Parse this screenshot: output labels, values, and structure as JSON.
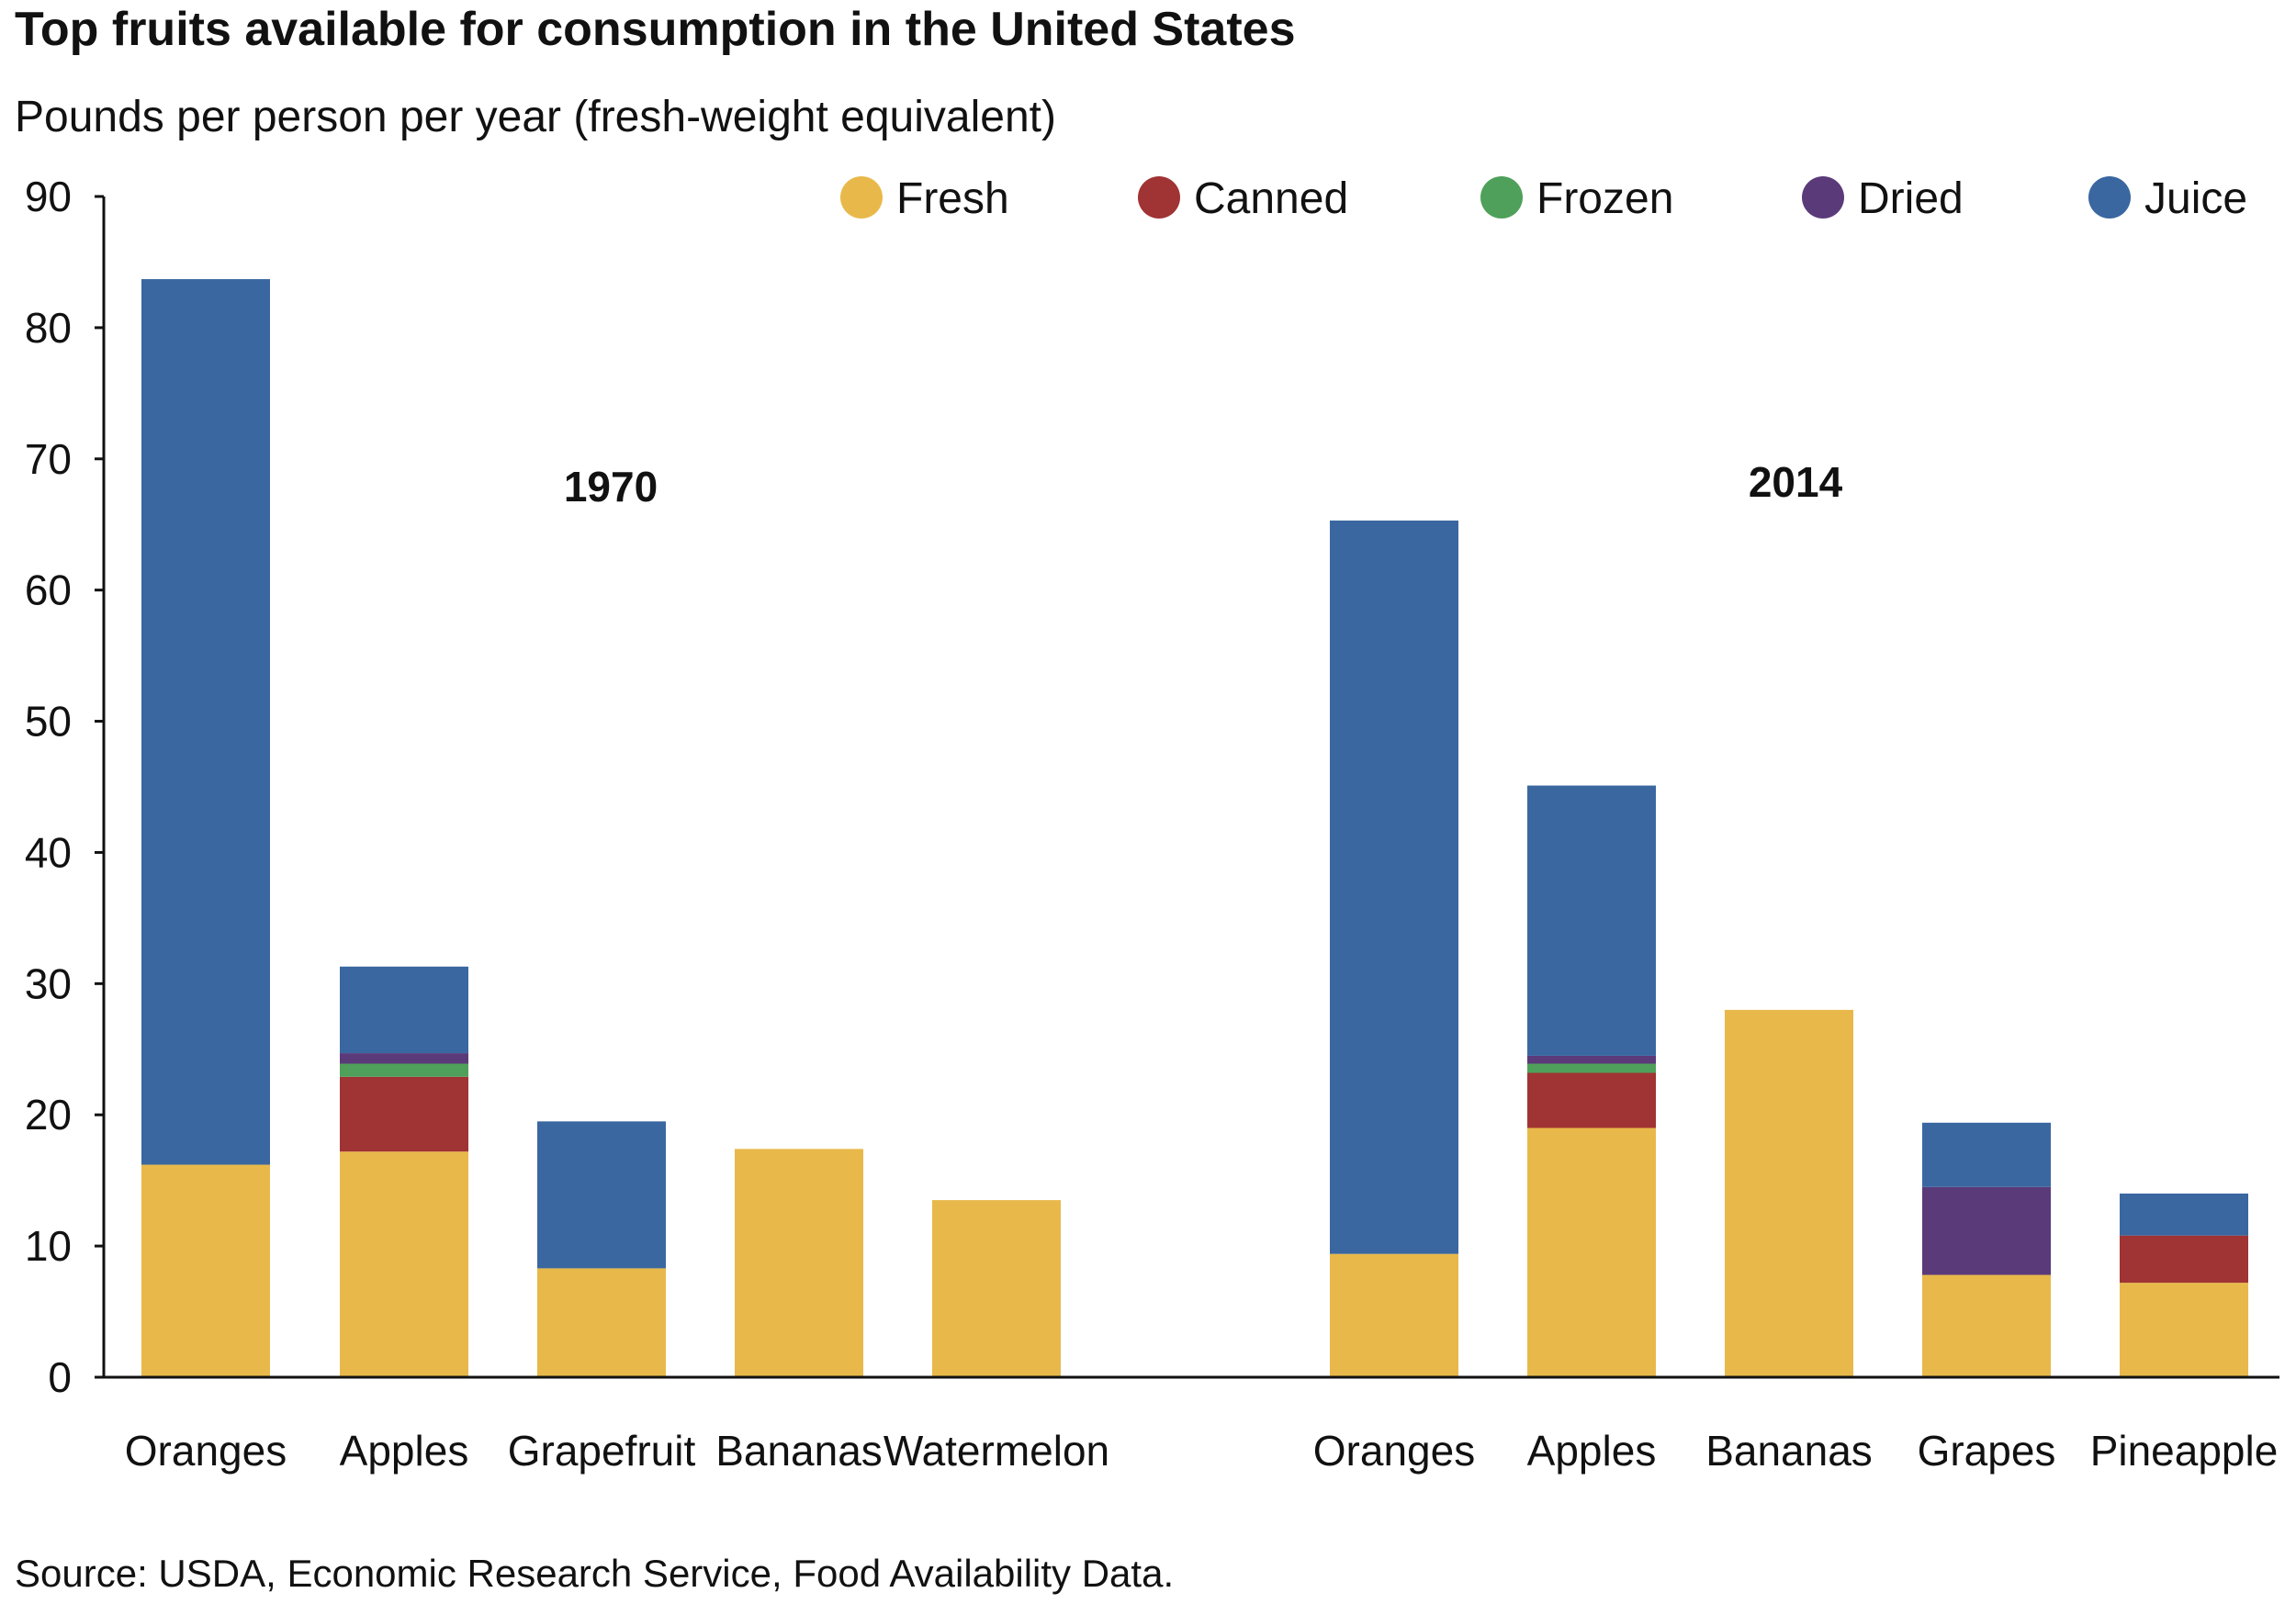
{
  "header": {
    "title": "Top fruits available for consumption in the United States",
    "subtitle": "Pounds per person per year (fresh-weight equivalent)"
  },
  "footer": {
    "source": "Source: USDA, Economic Research Service, Food Availability Data."
  },
  "chart_data": {
    "type": "bar",
    "stacked": true,
    "title": "Top fruits available for consumption in the United States",
    "ylabel": "Pounds per person per year (fresh-weight equivalent)",
    "ylim": [
      0,
      90
    ],
    "yticks": [
      0,
      10,
      20,
      30,
      40,
      50,
      60,
      70,
      80,
      90
    ],
    "legend_position": "top-right",
    "series": [
      {
        "name": "Fresh",
        "color": "#E8B94A"
      },
      {
        "name": "Canned",
        "color": "#A03333"
      },
      {
        "name": "Frozen",
        "color": "#4FA05A"
      },
      {
        "name": "Dried",
        "color": "#5B3A7A"
      },
      {
        "name": "Juice",
        "color": "#3A67A0"
      }
    ],
    "groups": [
      {
        "label": "1970",
        "categories": [
          {
            "name": "Oranges",
            "values": {
              "Fresh": 16.2,
              "Canned": 0,
              "Frozen": 0,
              "Dried": 0,
              "Juice": 67.5
            }
          },
          {
            "name": "Apples",
            "values": {
              "Fresh": 17.2,
              "Canned": 5.7,
              "Frozen": 1.0,
              "Dried": 0.8,
              "Juice": 6.6
            }
          },
          {
            "name": "Grapefruit",
            "values": {
              "Fresh": 8.3,
              "Canned": 0,
              "Frozen": 0,
              "Dried": 0,
              "Juice": 11.2
            }
          },
          {
            "name": "Bananas",
            "values": {
              "Fresh": 17.4,
              "Canned": 0,
              "Frozen": 0,
              "Dried": 0,
              "Juice": 0
            }
          },
          {
            "name": "Watermelon",
            "values": {
              "Fresh": 13.5,
              "Canned": 0,
              "Frozen": 0,
              "Dried": 0,
              "Juice": 0
            }
          }
        ]
      },
      {
        "label": "2014",
        "categories": [
          {
            "name": "Oranges",
            "values": {
              "Fresh": 9.4,
              "Canned": 0,
              "Frozen": 0,
              "Dried": 0,
              "Juice": 55.9
            }
          },
          {
            "name": "Apples",
            "values": {
              "Fresh": 19.0,
              "Canned": 4.2,
              "Frozen": 0.7,
              "Dried": 0.6,
              "Juice": 20.6
            }
          },
          {
            "name": "Bananas",
            "values": {
              "Fresh": 28.0,
              "Canned": 0,
              "Frozen": 0,
              "Dried": 0,
              "Juice": 0
            }
          },
          {
            "name": "Grapes",
            "values": {
              "Fresh": 7.8,
              "Canned": 0,
              "Frozen": 0,
              "Dried": 6.7,
              "Juice": 4.9
            }
          },
          {
            "name": "Pineapple",
            "values": {
              "Fresh": 7.2,
              "Canned": 3.6,
              "Frozen": 0,
              "Dried": 0,
              "Juice": 3.2
            }
          }
        ]
      }
    ]
  }
}
